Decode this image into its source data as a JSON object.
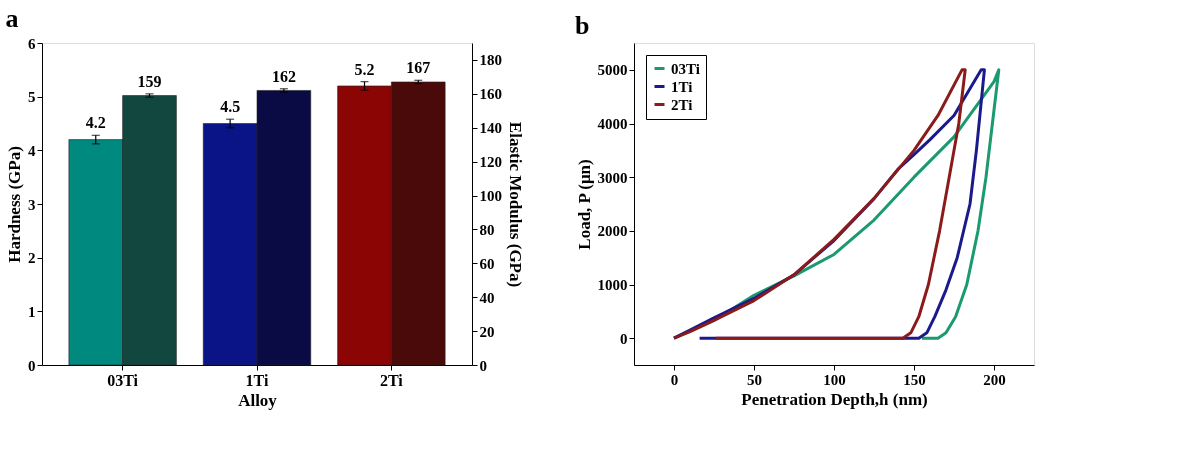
{
  "chart_data": [
    {
      "type": "bar",
      "title": "a",
      "xlabel": "Alloy",
      "ylabel": "Hardness (GPa)",
      "y2label": "Elastic Modulus (GPa)",
      "categories": [
        "03Ti",
        "1Ti",
        "2Ti"
      ],
      "ylim": [
        0,
        6
      ],
      "yticks": [
        0,
        1,
        2,
        3,
        4,
        5,
        6
      ],
      "y2lim": [
        0,
        190
      ],
      "y2ticks": [
        0,
        20,
        40,
        60,
        80,
        100,
        120,
        140,
        160,
        180
      ],
      "grid": false,
      "legend": false,
      "data_labels": true,
      "series": [
        {
          "colors": [
            "#00897f",
            "#0a1487",
            "#8b0505"
          ],
          "values": [
            4.2,
            4.5,
            5.2
          ],
          "errors": [
            0.08,
            0.08,
            0.08
          ]
        },
        {
          "axis": "y2",
          "colors": [
            "#12473f",
            "#0a0a45",
            "#4a0a0a"
          ],
          "values": [
            159,
            162,
            167
          ],
          "errors": [
            1,
            1,
            1
          ]
        }
      ]
    },
    {
      "type": "line",
      "title": "b",
      "xlabel": "Penetration Depth,h (nm)",
      "ylabel": "Load, P (μn)",
      "xlim": [
        -25,
        225
      ],
      "xticks": [
        0,
        50,
        100,
        150,
        200
      ],
      "ylim": [
        -500,
        5500
      ],
      "yticks": [
        0,
        1000,
        2000,
        3000,
        4000,
        5000
      ],
      "grid": false,
      "legend": "top left",
      "marker": "none",
      "line_style": "solid",
      "series": [
        {
          "name": "03Ti",
          "color": "#1a9a6e",
          "x": [
            0,
            10,
            25,
            50,
            75,
            100,
            125,
            150,
            175,
            200,
            203,
            199,
            195,
            190,
            183,
            176,
            170,
            165,
            155
          ],
          "values": [
            0,
            130,
            330,
            800,
            1160,
            1560,
            2200,
            3000,
            3750,
            4780,
            5000,
            4000,
            3000,
            2000,
            1000,
            400,
            100,
            0,
            0
          ]
        },
        {
          "name": "1Ti",
          "color": "#1a1a8c",
          "x": [
            0,
            10,
            25,
            50,
            75,
            100,
            125,
            140,
            150,
            160,
            175,
            192,
            194,
            189,
            185,
            177,
            170,
            163,
            158,
            153,
            16
          ],
          "values": [
            0,
            150,
            380,
            740,
            1180,
            1820,
            2600,
            3150,
            3420,
            3700,
            4150,
            5000,
            5000,
            3500,
            2500,
            1500,
            900,
            400,
            100,
            0,
            0
          ]
        },
        {
          "name": "2Ti",
          "color": "#8b1a1a",
          "x": [
            0,
            10,
            25,
            50,
            75,
            100,
            125,
            150,
            165,
            180,
            182,
            178,
            172,
            166,
            159,
            153,
            148,
            143,
            26
          ],
          "values": [
            0,
            120,
            330,
            700,
            1180,
            1840,
            2600,
            3500,
            4150,
            5000,
            5000,
            4000,
            3000,
            2000,
            1000,
            400,
            100,
            0,
            0
          ]
        }
      ]
    }
  ]
}
